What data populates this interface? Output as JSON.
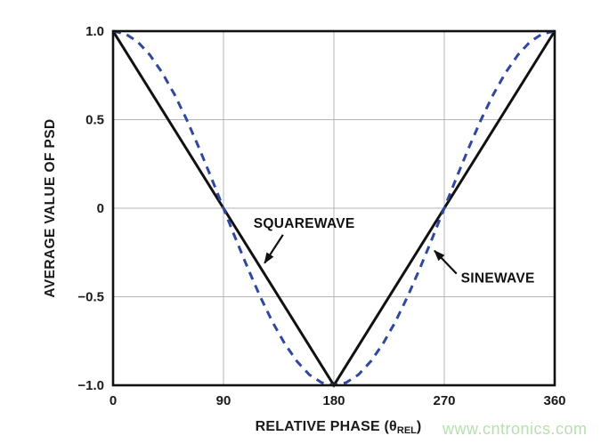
{
  "watermark": {
    "text": "www.cntronics.com",
    "color": "#b7e0ad"
  },
  "chart_data": {
    "type": "line",
    "title": "",
    "xlabel": "RELATIVE PHASE (θREL)",
    "xlabel_parts": {
      "pre": "RELATIVE PHASE (",
      "symbol": "θ",
      "subscript": "REL",
      "post": ")"
    },
    "ylabel": "AVERAGE VALUE OF PSD",
    "xlim": [
      0,
      360
    ],
    "ylim": [
      -1,
      1
    ],
    "grid": true,
    "grid_color": "#b5b5b5",
    "frame_color": "#111111",
    "x_tick_values": [
      0,
      90,
      180,
      270,
      360
    ],
    "x_tick_labels": [
      "0",
      "90",
      "180",
      "270",
      "360"
    ],
    "y_tick_values": [
      1,
      0.5,
      0,
      -0.5,
      -1
    ],
    "y_tick_labels": [
      "1.0",
      "0.5",
      "0",
      "−0.5",
      "−1.0"
    ],
    "series": [
      {
        "name": "SQUAREWAVE",
        "color": "#111111",
        "line_style": "solid",
        "line_width": 3,
        "x": [
          0,
          180,
          360
        ],
        "y": [
          1,
          -1,
          1
        ]
      },
      {
        "name": "SINEWAVE",
        "color": "#30479e",
        "line_style": "dashed",
        "line_width": 3,
        "x": [
          0,
          10,
          20,
          30,
          40,
          50,
          60,
          70,
          80,
          90,
          100,
          110,
          120,
          130,
          140,
          150,
          160,
          170,
          180,
          190,
          200,
          210,
          220,
          230,
          240,
          250,
          260,
          270,
          280,
          290,
          300,
          310,
          320,
          330,
          340,
          350,
          360
        ],
        "y": [
          1,
          0.985,
          0.94,
          0.866,
          0.766,
          0.643,
          0.5,
          0.342,
          0.174,
          0,
          -0.174,
          -0.342,
          -0.5,
          -0.643,
          -0.766,
          -0.866,
          -0.94,
          -0.985,
          -1,
          -0.985,
          -0.94,
          -0.866,
          -0.766,
          -0.643,
          -0.5,
          -0.342,
          -0.174,
          0,
          0.174,
          0.342,
          0.5,
          0.643,
          0.766,
          0.866,
          0.94,
          0.985,
          1
        ]
      }
    ],
    "annotations": [
      {
        "text": "SQUAREWAVE",
        "text_xy": [
          114.5,
          -0.11
        ],
        "arrow_from_xy": [
          138.5,
          -0.15
        ],
        "arrow_to_xy": [
          123.5,
          -0.31
        ]
      },
      {
        "text": "SINEWAVE",
        "text_xy": [
          283.5,
          -0.42
        ],
        "arrow_from_xy": [
          280,
          -0.37
        ],
        "arrow_to_xy": [
          262,
          -0.24
        ]
      }
    ]
  }
}
